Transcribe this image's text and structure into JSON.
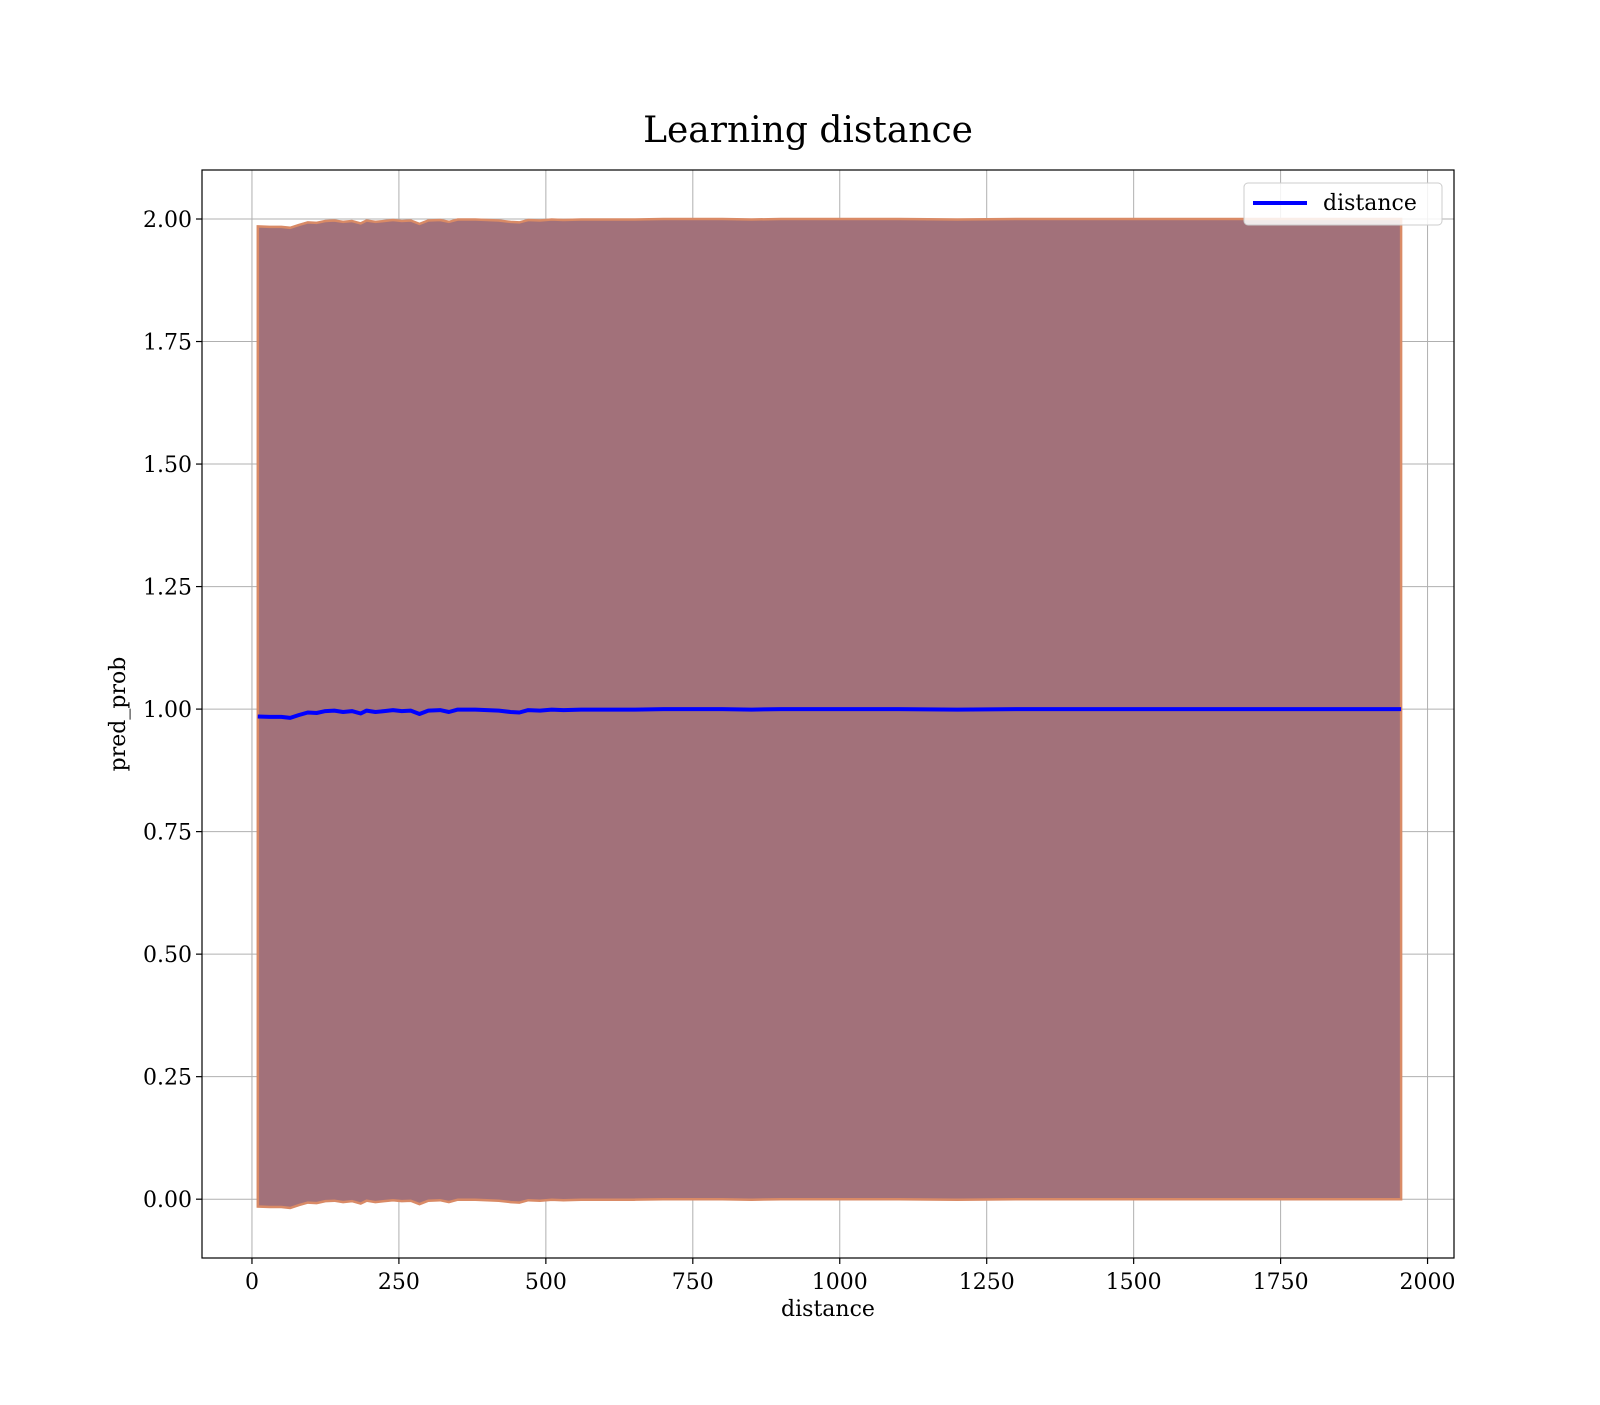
{
  "chart_data": {
    "type": "area",
    "title": "Learning distance",
    "xlabel": "distance",
    "ylabel": "pred_prob",
    "xlim": [
      -85,
      2045
    ],
    "ylim": [
      -0.12,
      2.1
    ],
    "xticks": [
      0,
      250,
      500,
      750,
      1000,
      1250,
      1500,
      1750,
      2000
    ],
    "yticks": [
      0.0,
      0.25,
      0.5,
      0.75,
      1.0,
      1.25,
      1.5,
      1.75,
      2.0
    ],
    "xtick_labels": [
      "0",
      "250",
      "500",
      "750",
      "1000",
      "1250",
      "1500",
      "1750",
      "2000"
    ],
    "ytick_labels": [
      "0.00",
      "0.25",
      "0.50",
      "0.75",
      "1.00",
      "1.25",
      "1.50",
      "1.75",
      "2.00"
    ],
    "grid": true,
    "legend_position": "top-right",
    "colors": {
      "line": "#0000ff",
      "band_fill": "#a2717a",
      "band_edge": "#d98a66",
      "grid": "#b0b0b0"
    },
    "series": [
      {
        "name": "distance",
        "x": [
          10,
          30,
          50,
          65,
          80,
          95,
          110,
          125,
          140,
          155,
          170,
          185,
          195,
          210,
          225,
          240,
          255,
          270,
          285,
          300,
          320,
          335,
          350,
          380,
          420,
          440,
          455,
          470,
          490,
          510,
          530,
          560,
          600,
          650,
          700,
          800,
          850,
          900,
          1000,
          1100,
          1200,
          1300,
          1400,
          1500,
          1600,
          1700,
          1800,
          1900,
          1955
        ],
        "y": [
          0.985,
          0.984,
          0.984,
          0.982,
          0.988,
          0.993,
          0.992,
          0.996,
          0.997,
          0.994,
          0.996,
          0.991,
          0.997,
          0.994,
          0.996,
          0.998,
          0.996,
          0.997,
          0.99,
          0.997,
          0.998,
          0.994,
          0.999,
          0.999,
          0.997,
          0.994,
          0.993,
          0.998,
          0.997,
          0.999,
          0.998,
          0.999,
          0.999,
          0.999,
          1.0,
          1.0,
          0.999,
          1.0,
          1.0,
          1.0,
          0.999,
          1.0,
          1.0,
          1.0,
          1.0,
          1.0,
          1.0,
          1.0,
          1.0
        ]
      }
    ],
    "band": {
      "x": [
        10,
        30,
        50,
        65,
        80,
        95,
        110,
        125,
        140,
        155,
        170,
        185,
        195,
        210,
        225,
        240,
        255,
        270,
        285,
        300,
        320,
        335,
        350,
        380,
        420,
        440,
        455,
        470,
        490,
        510,
        530,
        560,
        600,
        650,
        700,
        800,
        850,
        900,
        1000,
        1100,
        1200,
        1300,
        1400,
        1500,
        1600,
        1700,
        1800,
        1900,
        1955
      ],
      "lower": [
        -0.015,
        -0.016,
        -0.016,
        -0.018,
        -0.012,
        -0.007,
        -0.008,
        -0.004,
        -0.003,
        -0.006,
        -0.004,
        -0.009,
        -0.003,
        -0.006,
        -0.004,
        -0.002,
        -0.004,
        -0.003,
        -0.01,
        -0.003,
        -0.002,
        -0.006,
        -0.001,
        -0.001,
        -0.003,
        -0.006,
        -0.007,
        -0.002,
        -0.003,
        -0.001,
        -0.002,
        -0.001,
        -0.001,
        -0.001,
        0.0,
        0.0,
        -0.001,
        0.0,
        0.0,
        0.0,
        -0.001,
        0.0,
        0.0,
        0.0,
        0.0,
        0.0,
        0.0,
        0.0,
        0.0
      ],
      "upper": [
        1.985,
        1.984,
        1.984,
        1.982,
        1.988,
        1.993,
        1.992,
        1.996,
        1.997,
        1.994,
        1.996,
        1.991,
        1.997,
        1.994,
        1.996,
        1.998,
        1.996,
        1.997,
        1.99,
        1.997,
        1.998,
        1.994,
        1.999,
        1.999,
        1.997,
        1.994,
        1.993,
        1.998,
        1.997,
        1.999,
        1.998,
        1.999,
        1.999,
        1.999,
        2.0,
        2.0,
        1.999,
        2.0,
        2.0,
        2.0,
        1.999,
        2.0,
        2.0,
        2.0,
        2.0,
        2.0,
        2.0,
        2.0,
        2.0
      ]
    }
  }
}
